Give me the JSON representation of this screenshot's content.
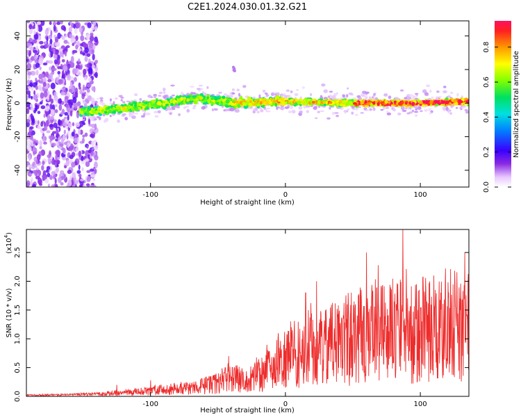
{
  "title": "C2E1.2024.030.01.32.G21",
  "chart_data": [
    {
      "type": "heatmap",
      "name": "spectrogram",
      "xlabel": "Height of straight line (km)",
      "ylabel": "Frequency (Hz)",
      "xlim": [
        -192,
        136
      ],
      "ylim": [
        -50,
        49
      ],
      "xticks": [
        -100,
        0,
        100
      ],
      "xtick_labels": [
        "-100",
        "0",
        "100"
      ],
      "yticks": [
        -40,
        -20,
        0,
        20,
        40
      ],
      "ytick_labels": [
        "-40",
        "-20",
        "0",
        "20",
        "40"
      ],
      "grid": false,
      "description": "Scattered low-amplitude noise for heights below about -145 km; a concentrated band near 0 Hz from about -150 km to 136 km, slightly negative near -140 km, rising to about +3 Hz near -65 km, with highest amplitude (red) between about 50 and 136 km.",
      "band_center_hz": [
        {
          "x": -150,
          "y": -5
        },
        {
          "x": -120,
          "y": -3
        },
        {
          "x": -90,
          "y": 0
        },
        {
          "x": -65,
          "y": 3
        },
        {
          "x": -40,
          "y": 0
        },
        {
          "x": 0,
          "y": 1
        },
        {
          "x": 50,
          "y": 0
        },
        {
          "x": 100,
          "y": 0
        },
        {
          "x": 136,
          "y": 1
        }
      ],
      "colorbar": {
        "label": "Normalized spectral amplitude",
        "range": [
          0.0,
          0.95
        ],
        "ticks": [
          0.0,
          0.2,
          0.4,
          0.6,
          0.8
        ],
        "tick_labels": [
          "0.0",
          "0.2",
          "0.4",
          "0.6",
          "0.8"
        ]
      }
    },
    {
      "type": "line",
      "name": "snr",
      "xlabel": "Height of straight line (km)",
      "ylabel": "SNR (10 * v/v)",
      "y_multiplier_label": "(x10",
      "y_multiplier_exp": "4",
      "xlim": [
        -192,
        136
      ],
      "ylim": [
        0,
        2.9
      ],
      "xticks": [
        -100,
        0,
        100
      ],
      "xtick_labels": [
        "-100",
        "0",
        "100"
      ],
      "yticks": [
        0.0,
        0.5,
        1.0,
        1.5,
        2.0,
        2.5
      ],
      "ytick_labels": [
        "0.0",
        "0.5",
        "1.0",
        "1.5",
        "2.0",
        "2.5"
      ],
      "grid": false,
      "color": "#ee2c2c",
      "envelope": {
        "x": [
          -192,
          -160,
          -130,
          -110,
          -90,
          -70,
          -50,
          -40,
          -30,
          -20,
          -10,
          0,
          10,
          20,
          30,
          40,
          50,
          60,
          70,
          80,
          90,
          100,
          110,
          120,
          130,
          136
        ],
        "y": [
          0.02,
          0.03,
          0.06,
          0.09,
          0.13,
          0.17,
          0.27,
          0.36,
          0.33,
          0.42,
          0.58,
          0.78,
          0.92,
          1.02,
          1.05,
          1.12,
          1.22,
          1.25,
          1.3,
          1.35,
          1.38,
          1.4,
          1.4,
          1.42,
          1.45,
          1.45
        ]
      },
      "peaks": [
        {
          "x": -125,
          "y": 0.2
        },
        {
          "x": -100,
          "y": 0.28
        },
        {
          "x": -42,
          "y": 0.7
        },
        {
          "x": 15,
          "y": 1.8
        },
        {
          "x": 23,
          "y": 2.0
        },
        {
          "x": 60,
          "y": 2.5
        },
        {
          "x": 87,
          "y": 2.9
        },
        {
          "x": 110,
          "y": 2.1
        },
        {
          "x": 133,
          "y": 2.5
        }
      ]
    }
  ]
}
